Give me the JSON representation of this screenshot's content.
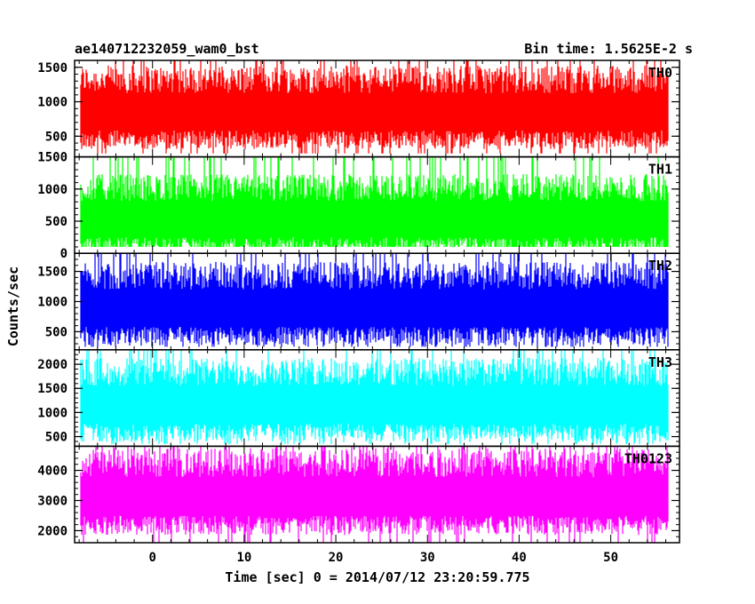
{
  "header": {
    "left_title": "ae140712232059_wam0_bst",
    "right_title": "Bin time: 1.5625E-2 s"
  },
  "chart_data": {
    "type": "line",
    "title": "ae140712232059_wam0_bst",
    "subtitle": "Bin time: 1.5625E-2 s",
    "xlabel": "Time [sec] 0 = 2014/07/12 23:20:59.775",
    "ylabel": "Counts/sec",
    "xlim": [
      -8.5,
      57.5
    ],
    "x_data_range": [
      -7.8,
      56.2
    ],
    "x_ticks": [
      0,
      10,
      20,
      30,
      40,
      50
    ],
    "grid": false,
    "panels": [
      {
        "name": "TH0",
        "color": "#ff0000",
        "ylim": [
          200,
          1600
        ],
        "y_ticks": [
          500,
          1000,
          1500
        ],
        "y_tick_labels": [
          "500",
          "1000",
          "1500"
        ],
        "mean": 880,
        "range": [
          250,
          1600
        ]
      },
      {
        "name": "TH1",
        "color": "#00ff00",
        "ylim": [
          0,
          1500
        ],
        "y_ticks": [
          0,
          500,
          1000,
          1500
        ],
        "y_tick_labels": [
          "0",
          "500",
          "1000",
          "1500"
        ],
        "mean": 560,
        "range": [
          100,
          1500
        ]
      },
      {
        "name": "TH2",
        "color": "#0000ff",
        "ylim": [
          200,
          1800
        ],
        "y_ticks": [
          500,
          1000,
          1500
        ],
        "y_tick_labels": [
          "500",
          "1000",
          "1500"
        ],
        "mean": 920,
        "range": [
          250,
          1800
        ]
      },
      {
        "name": "TH3",
        "color": "#00ffff",
        "ylim": [
          300,
          2300
        ],
        "y_ticks": [
          500,
          1000,
          1500,
          2000
        ],
        "y_tick_labels": [
          "500",
          "1000",
          "1500",
          "2000"
        ],
        "mean": 1200,
        "range": [
          350,
          2300
        ]
      },
      {
        "name": "TH0123",
        "color": "#ff00ff",
        "ylim": [
          1600,
          4800
        ],
        "y_ticks": [
          2000,
          3000,
          4000
        ],
        "y_tick_labels": [
          "2000",
          "3000",
          "4000"
        ],
        "mean": 3200,
        "range": [
          1600,
          4800
        ]
      }
    ]
  }
}
